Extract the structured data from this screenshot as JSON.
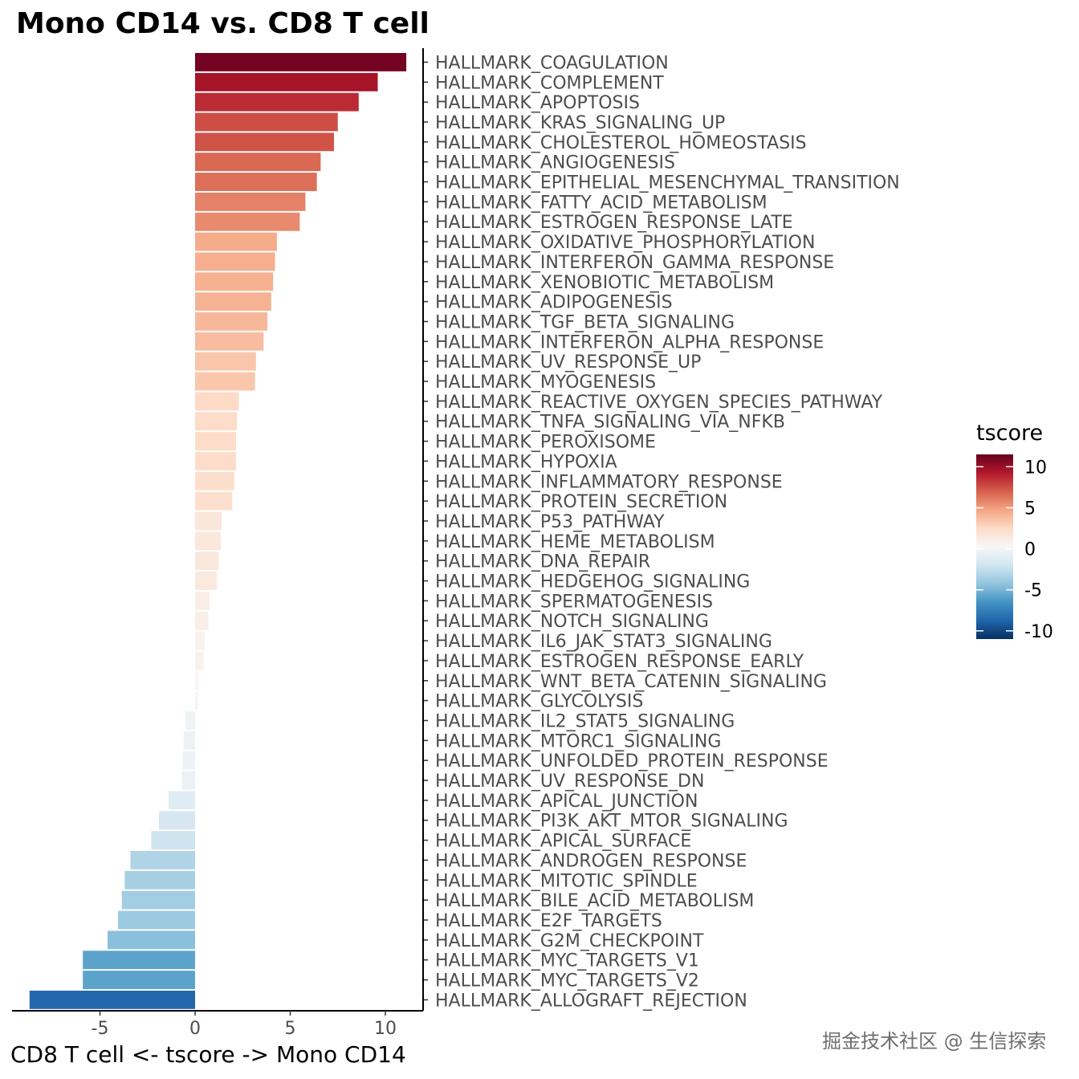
{
  "chart_data": {
    "type": "bar",
    "orientation": "horizontal",
    "title": "Mono CD14 vs. CD8 T cell",
    "xlabel": "CD8 T cell <- tscore -> Mono CD14",
    "ylabel": "",
    "xlim": [
      -9.5,
      12
    ],
    "xticks": [
      -5,
      0,
      5,
      10
    ],
    "xtick_labels": [
      "-5",
      "0",
      "5",
      "10"
    ],
    "categories": [
      "HALLMARK_COAGULATION",
      "HALLMARK_COMPLEMENT",
      "HALLMARK_APOPTOSIS",
      "HALLMARK_KRAS_SIGNALING_UP",
      "HALLMARK_CHOLESTEROL_HOMEOSTASIS",
      "HALLMARK_ANGIOGENESIS",
      "HALLMARK_EPITHELIAL_MESENCHYMAL_TRANSITION",
      "HALLMARK_FATTY_ACID_METABOLISM",
      "HALLMARK_ESTROGEN_RESPONSE_LATE",
      "HALLMARK_OXIDATIVE_PHOSPHORYLATION",
      "HALLMARK_INTERFERON_GAMMA_RESPONSE",
      "HALLMARK_XENOBIOTIC_METABOLISM",
      "HALLMARK_ADIPOGENESIS",
      "HALLMARK_TGF_BETA_SIGNALING",
      "HALLMARK_INTERFERON_ALPHA_RESPONSE",
      "HALLMARK_UV_RESPONSE_UP",
      "HALLMARK_MYOGENESIS",
      "HALLMARK_REACTIVE_OXYGEN_SPECIES_PATHWAY",
      "HALLMARK_TNFA_SIGNALING_VIA_NFKB",
      "HALLMARK_PEROXISOME",
      "HALLMARK_HYPOXIA",
      "HALLMARK_INFLAMMATORY_RESPONSE",
      "HALLMARK_PROTEIN_SECRETION",
      "HALLMARK_P53_PATHWAY",
      "HALLMARK_HEME_METABOLISM",
      "HALLMARK_DNA_REPAIR",
      "HALLMARK_HEDGEHOG_SIGNALING",
      "HALLMARK_SPERMATOGENESIS",
      "HALLMARK_NOTCH_SIGNALING",
      "HALLMARK_IL6_JAK_STAT3_SIGNALING",
      "HALLMARK_ESTROGEN_RESPONSE_EARLY",
      "HALLMARK_WNT_BETA_CATENIN_SIGNALING",
      "HALLMARK_GLYCOLYSIS",
      "HALLMARK_IL2_STAT5_SIGNALING",
      "HALLMARK_MTORC1_SIGNALING",
      "HALLMARK_UNFOLDED_PROTEIN_RESPONSE",
      "HALLMARK_UV_RESPONSE_DN",
      "HALLMARK_APICAL_JUNCTION",
      "HALLMARK_PI3K_AKT_MTOR_SIGNALING",
      "HALLMARK_APICAL_SURFACE",
      "HALLMARK_ANDROGEN_RESPONSE",
      "HALLMARK_MITOTIC_SPINDLE",
      "HALLMARK_BILE_ACID_METABOLISM",
      "HALLMARK_E2F_TARGETS",
      "HALLMARK_G2M_CHECKPOINT",
      "HALLMARK_MYC_TARGETS_V1",
      "HALLMARK_MYC_TARGETS_V2",
      "HALLMARK_ALLOGRAFT_REJECTION"
    ],
    "values": [
      11.1,
      9.6,
      8.6,
      7.5,
      7.3,
      6.6,
      6.4,
      5.8,
      5.5,
      4.3,
      4.2,
      4.1,
      4.0,
      3.8,
      3.6,
      3.2,
      3.15,
      2.3,
      2.2,
      2.15,
      2.15,
      2.05,
      1.95,
      1.4,
      1.35,
      1.25,
      1.15,
      0.75,
      0.7,
      0.5,
      0.45,
      0.2,
      0.15,
      -0.5,
      -0.6,
      -0.65,
      -0.7,
      -1.4,
      -1.9,
      -2.3,
      -3.4,
      -3.7,
      -3.85,
      -4.05,
      -4.6,
      -5.9,
      -5.9,
      -8.7
    ],
    "legend": {
      "title": "tscore",
      "position": "right",
      "range": [
        -11,
        11.5
      ],
      "ticks": [
        10,
        5,
        0,
        -5,
        -10
      ],
      "tick_labels": [
        "10",
        "5",
        "0",
        "-5",
        "-10"
      ],
      "colors": [
        "#053061",
        "#2166ac",
        "#4393c3",
        "#92c5de",
        "#d1e5f0",
        "#f7f7f7",
        "#fddbc7",
        "#f4a582",
        "#d6604d",
        "#b2182b",
        "#67001f"
      ]
    },
    "grid": false
  },
  "watermark": "掘金技术社区 @ 生信探索"
}
